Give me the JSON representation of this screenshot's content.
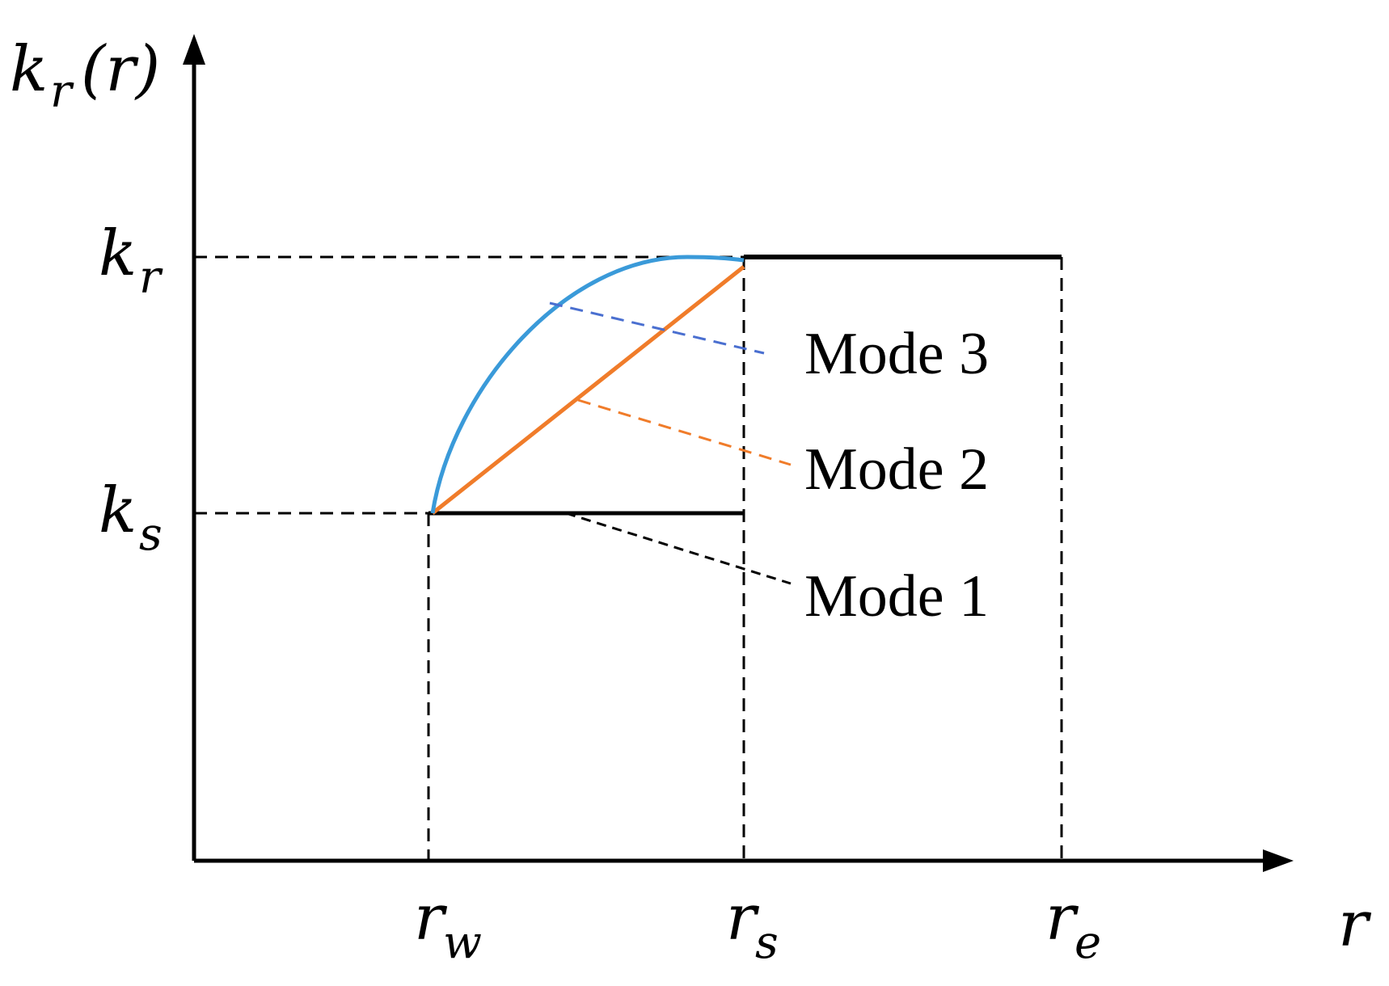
{
  "axes": {
    "y_label": {
      "main": "k",
      "sub": "r",
      "suffix": "(r)"
    },
    "x_label": "r"
  },
  "levels": {
    "k_r": {
      "main": "k",
      "sub": "r"
    },
    "k_s": {
      "main": "k",
      "sub": "s"
    }
  },
  "radii": {
    "r_w": {
      "main": "r",
      "sub": "w"
    },
    "r_s": {
      "main": "r",
      "sub": "s"
    },
    "r_e": {
      "main": "r",
      "sub": "e"
    }
  },
  "modes": [
    {
      "label": "Mode 3",
      "color": "#3a9ad9",
      "leader_color": "#4a6fd0",
      "curve": "arc"
    },
    {
      "label": "Mode 2",
      "color": "#f07c2a",
      "leader_color": "#f07c2a",
      "curve": "linear"
    },
    {
      "label": "Mode 1",
      "color": "#000000",
      "leader_color": "#000000",
      "curve": "constant"
    }
  ]
}
